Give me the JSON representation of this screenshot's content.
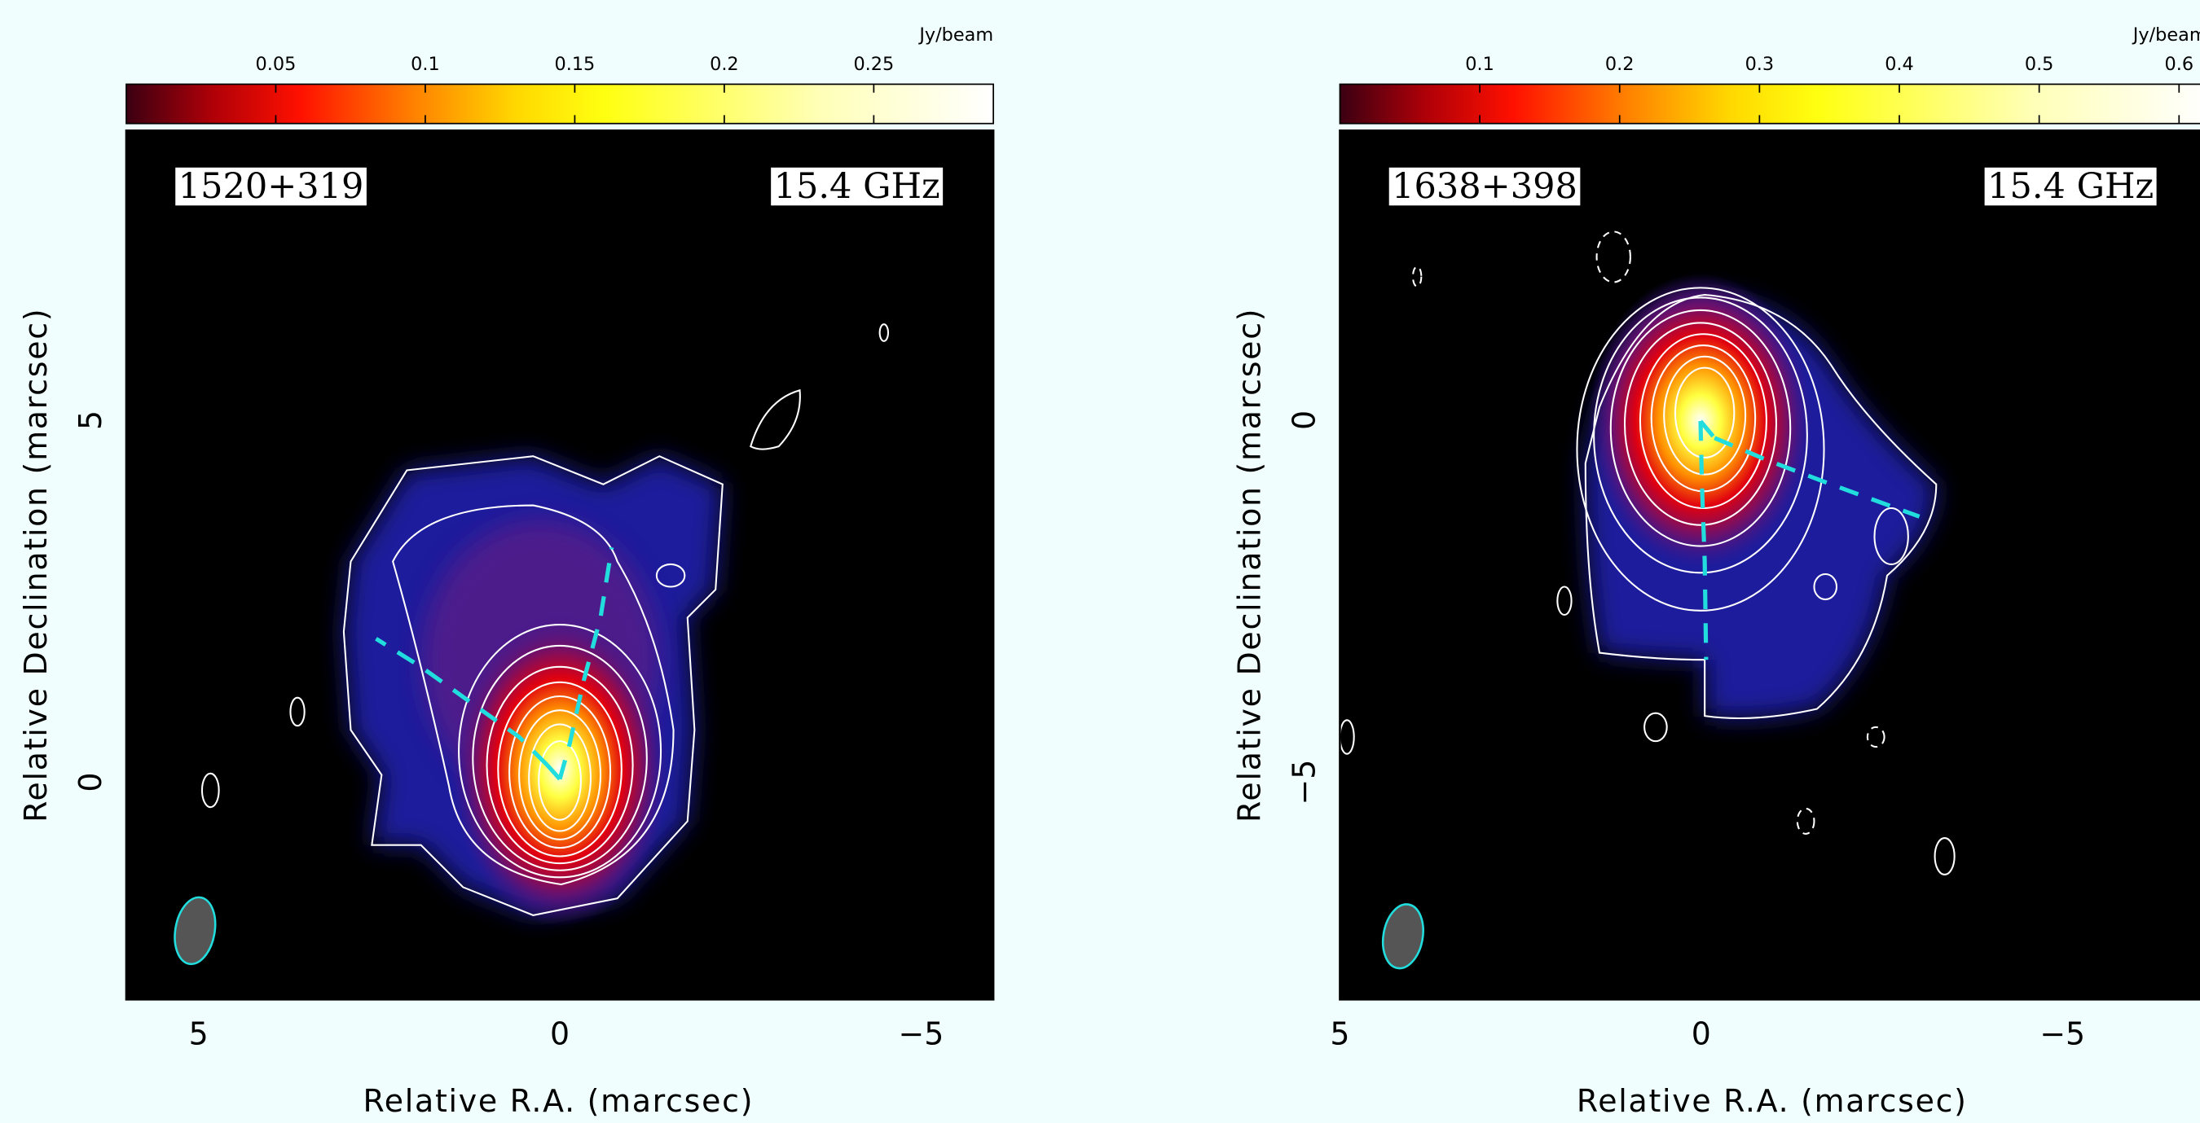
{
  "chart_data": [
    {
      "type": "heatmap",
      "source": "1520+319",
      "frequency": "15.4 GHz",
      "x_label": "Relative R.A. (marcsec)",
      "y_label": "Relative Declination (marcsec)",
      "xlim": [
        6,
        -6
      ],
      "xticks": [
        5,
        0,
        {
          "value": -5,
          "label": "−5"
        }
      ],
      "ylim": [
        -3,
        9
      ],
      "yticks": [
        0,
        5
      ],
      "colorbar": {
        "label": "Jy/beam",
        "lim": [
          0,
          0.29
        ],
        "ticks": [
          0.05,
          0.1,
          0.15,
          0.2,
          0.25
        ]
      }
    },
    {
      "type": "heatmap",
      "source": "1638+398",
      "frequency": "15.4 GHz",
      "x_label": "Relative R.A. (marcsec)",
      "y_label": "Relative Declination (marcsec)",
      "xlim": [
        5,
        -7
      ],
      "xticks": [
        5,
        0,
        {
          "value": -5,
          "label": "−5"
        }
      ],
      "ylim": [
        -8,
        4
      ],
      "yticks": [
        {
          "value": -5,
          "label": "−5"
        },
        0
      ],
      "colorbar": {
        "label": "Jy/beam",
        "lim": [
          0,
          0.62
        ],
        "ticks": [
          0.1,
          0.2,
          0.3,
          0.4,
          0.5,
          0.6
        ]
      }
    }
  ]
}
